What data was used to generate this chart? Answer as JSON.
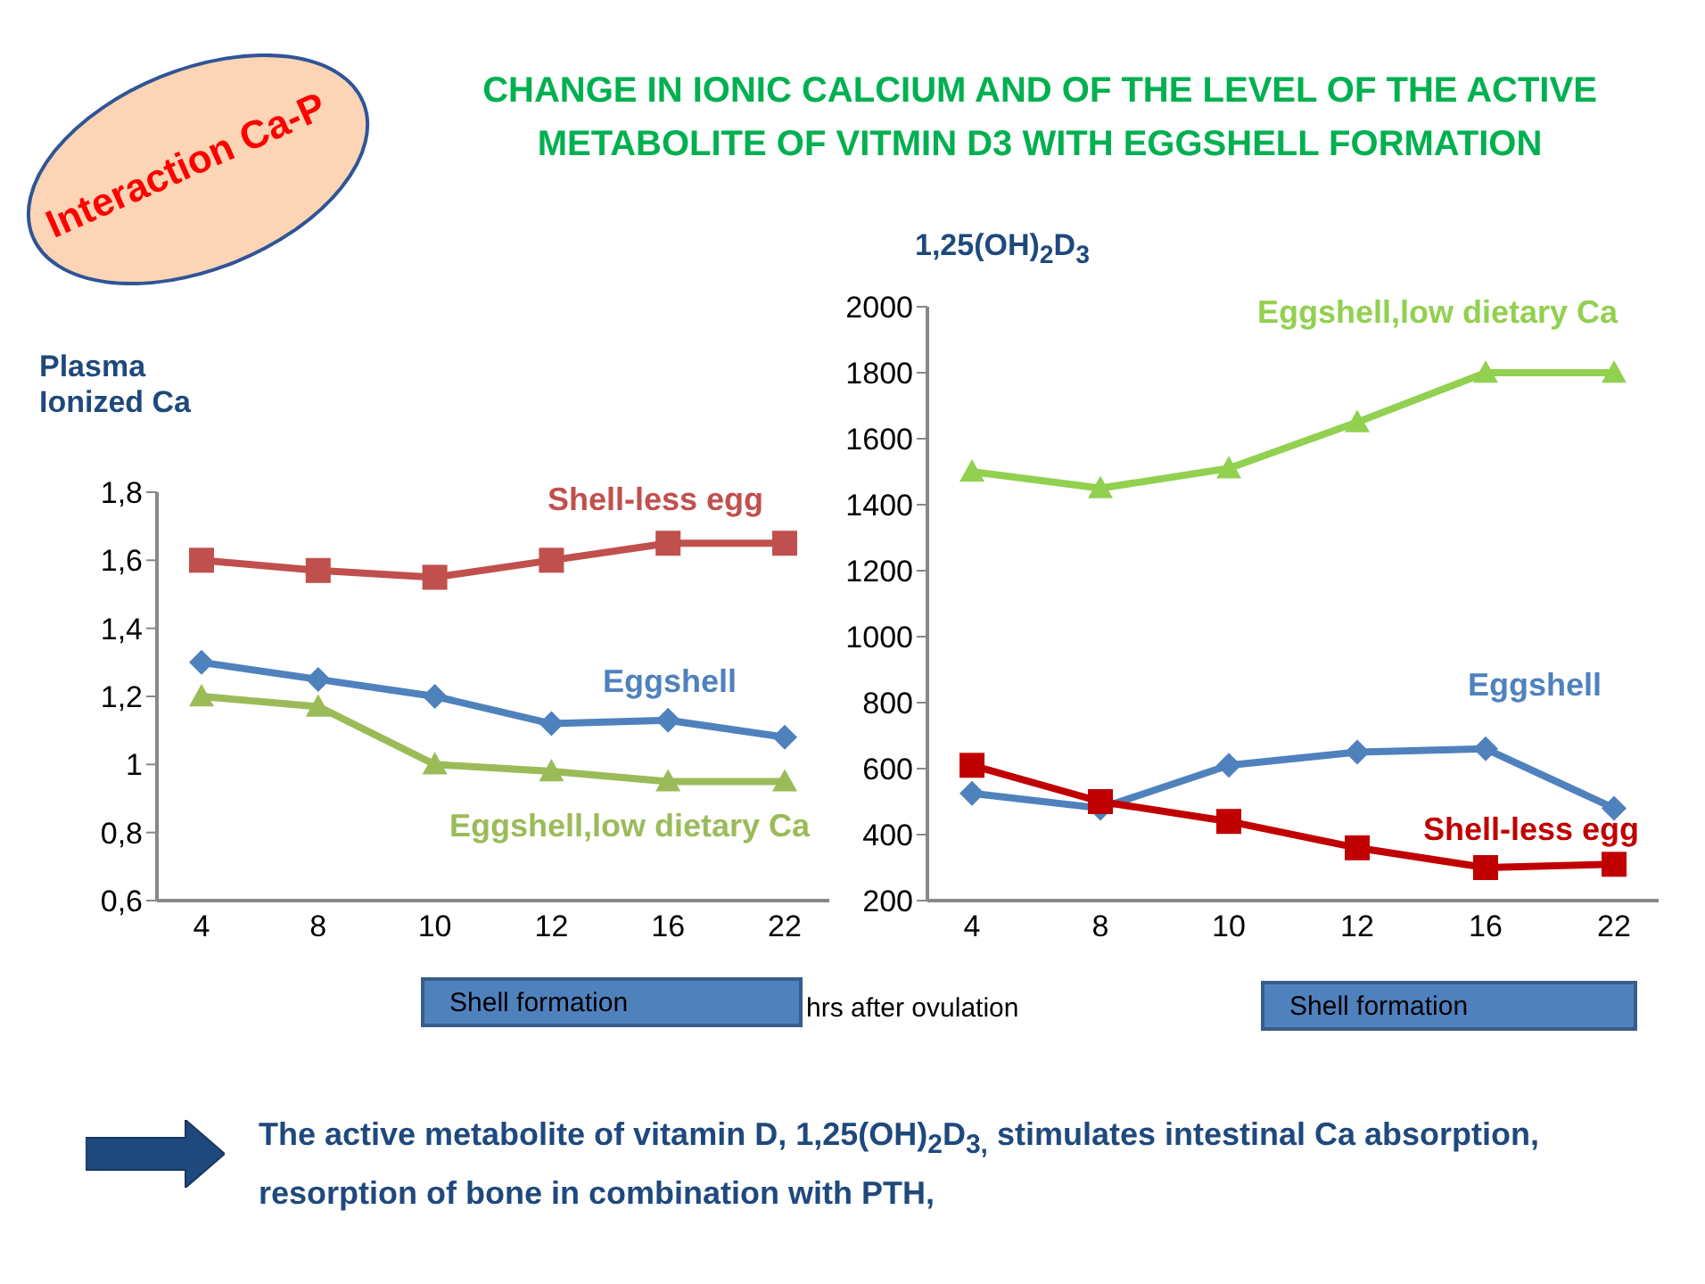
{
  "chart_data": [
    {
      "type": "line",
      "title": "CHANGE IN IONIC CALCIUM AND OF THE LEVEL OF THE ACTIVE METABOLITE OF VITMIN D3 WITH EGGSHELL FORMATION",
      "ylabel": "Plasma Ionized Ca",
      "xlabel": "hrs after ovulation",
      "categories": [
        "4",
        "8",
        "10",
        "12",
        "16",
        "22"
      ],
      "ylim": [
        0.6,
        1.8
      ],
      "yticks": [
        {
          "value": 0.6,
          "label": "0,6"
        },
        {
          "value": 0.8,
          "label": "0,8"
        },
        1,
        {
          "value": 1.2,
          "label": "1,2"
        },
        {
          "value": 1.4,
          "label": "1,4"
        },
        {
          "value": 1.6,
          "label": "1,6"
        },
        {
          "value": 1.8,
          "label": "1,8"
        }
      ],
      "series": [
        {
          "name": "Shell-less egg",
          "color": "#c0504d",
          "marker": "square",
          "values": [
            1.6,
            1.57,
            1.55,
            1.6,
            1.65,
            1.65
          ]
        },
        {
          "name": "Eggshell",
          "color": "#4f81bd",
          "marker": "diamond",
          "values": [
            1.3,
            1.25,
            1.2,
            1.12,
            1.13,
            1.08
          ]
        },
        {
          "name": "Eggshell,low dietary Ca",
          "color": "#9bbb59",
          "marker": "triangle",
          "values": [
            1.2,
            1.17,
            1.0,
            0.98,
            0.95,
            0.95
          ]
        }
      ],
      "annotations": [
        "Interaction Ca-P",
        "Shell formation",
        "The active metabolite of vitamin D, 1,25(OH)$_{2}$D$_{3,}$ stimulates intestinal Ca absorption, resorption of bone in combination with PTH,"
      ]
    },
    {
      "type": "line",
      "ylabel": "1,25(OH)$_{2}$D$_{3}$",
      "categories": [
        "4",
        "8",
        "10",
        "12",
        "16",
        "22"
      ],
      "ylim": [
        200,
        2000
      ],
      "yticks": [
        200,
        400,
        600,
        800,
        1000,
        1200,
        1400,
        1600,
        1800,
        2000
      ],
      "series": [
        {
          "name": "Eggshell,low dietary Ca",
          "color": "#92d050",
          "marker": "triangle",
          "values": [
            1500,
            1450,
            1510,
            1650,
            1800,
            1800
          ]
        },
        {
          "name": "Eggshell",
          "color": "#4f81bd",
          "marker": "diamond",
          "values": [
            525,
            480,
            610,
            650,
            660,
            480
          ]
        },
        {
          "name": "Shell-less egg",
          "color": "#c00000",
          "marker": "square",
          "values": [
            610,
            500,
            440,
            360,
            300,
            310
          ]
        }
      ],
      "annotations": [
        "Shell formation"
      ]
    }
  ]
}
